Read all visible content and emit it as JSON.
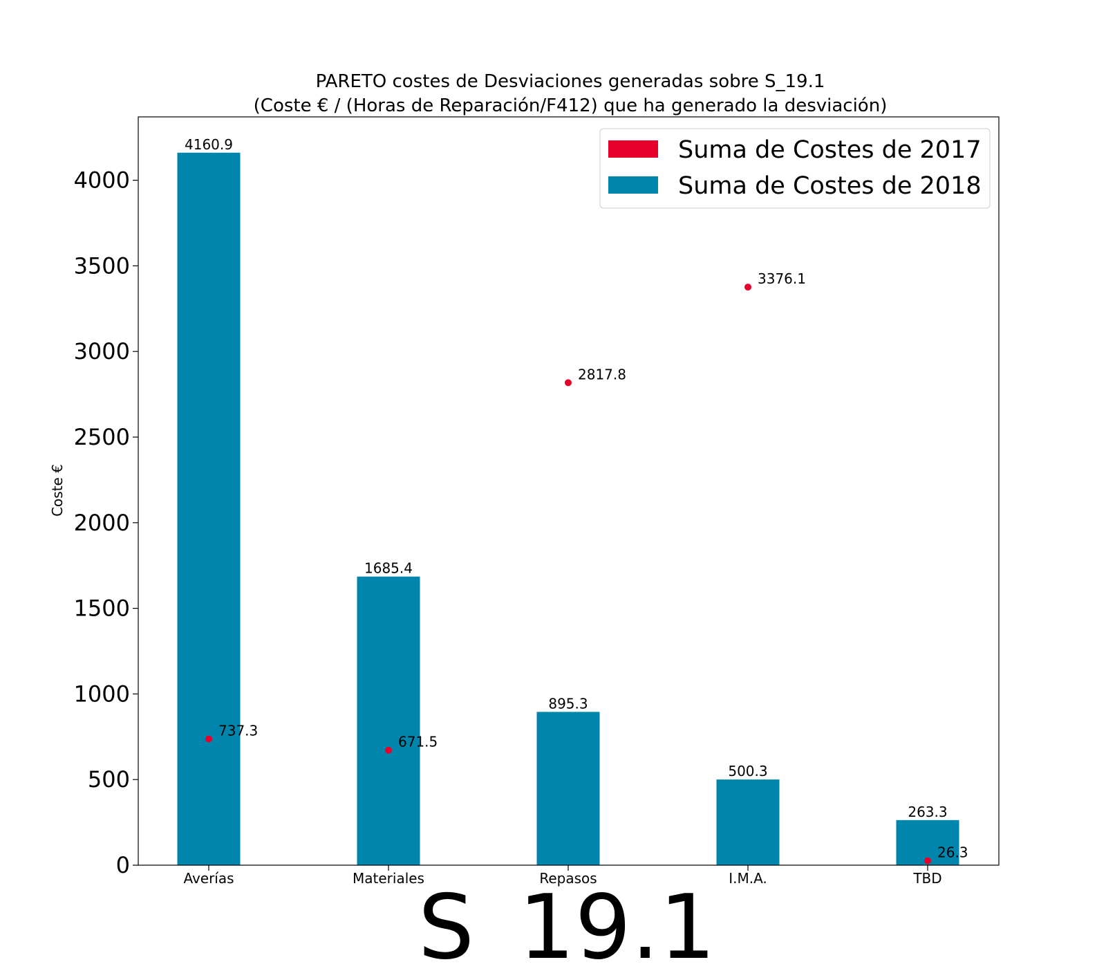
{
  "chart_data": {
    "type": "bar",
    "title": "PARETO costes de Desviaciones  generadas  sobre S_19.1",
    "subtitle": "(Coste € / (Horas de Reparación/F412) que ha generado la desviación)",
    "xlabel": "S_19.1",
    "ylabel": "Coste €",
    "ylim": [
      0,
      4370
    ],
    "yticks": [
      0,
      500,
      1000,
      1500,
      2000,
      2500,
      3000,
      3500,
      4000
    ],
    "categories": [
      "Averías",
      "Materiales",
      "Repasos",
      "I.M.A.",
      "TBD"
    ],
    "series": [
      {
        "name": "Suma de Costes de 2017",
        "render": "scatter",
        "color": "#e8002d",
        "values": [
          737.3,
          671.5,
          2817.8,
          3376.1,
          26.3
        ],
        "labels": [
          "737.3",
          "671.5",
          "2817.8",
          "3376.1",
          "26.3"
        ]
      },
      {
        "name": "Suma de Costes de 2018",
        "render": "bar",
        "color": "#0086ad",
        "values": [
          4160.9,
          1685.4,
          895.3,
          500.3,
          263.3
        ],
        "labels": [
          "4160.9",
          "1685.4",
          "895.3",
          "500.3",
          "263.3"
        ]
      }
    ],
    "legend": "top-right",
    "grid": false
  }
}
